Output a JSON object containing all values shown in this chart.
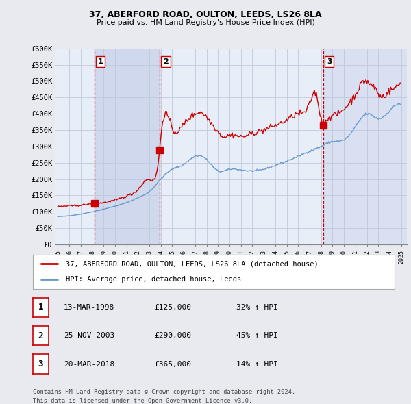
{
  "title1": "37, ABERFORD ROAD, OULTON, LEEDS, LS26 8LA",
  "title2": "Price paid vs. HM Land Registry's House Price Index (HPI)",
  "ylim": [
    0,
    600000
  ],
  "yticks": [
    0,
    50000,
    100000,
    150000,
    200000,
    250000,
    300000,
    350000,
    400000,
    450000,
    500000,
    550000,
    600000
  ],
  "ytick_labels": [
    "£0",
    "£50K",
    "£100K",
    "£150K",
    "£200K",
    "£250K",
    "£300K",
    "£350K",
    "£400K",
    "£450K",
    "£500K",
    "£550K",
    "£600K"
  ],
  "bg_color": "#e8eaf0",
  "plot_bg_color": "#e8eef8",
  "shade_color": "#d0d8ee",
  "grid_color": "#c0c8dc",
  "hpi_color": "#6699cc",
  "price_color": "#cc0000",
  "vline_color": "#cc0000",
  "sale_years": [
    1998.2,
    2003.9,
    2018.2
  ],
  "sale_prices": [
    125000,
    290000,
    365000
  ],
  "sale_labels": [
    "1",
    "2",
    "3"
  ],
  "legend_label_red": "37, ABERFORD ROAD, OULTON, LEEDS, LS26 8LA (detached house)",
  "legend_label_blue": "HPI: Average price, detached house, Leeds",
  "table_rows": [
    {
      "num": "1",
      "date": "13-MAR-1998",
      "price": "£125,000",
      "pct": "32% ↑ HPI"
    },
    {
      "num": "2",
      "date": "25-NOV-2003",
      "price": "£290,000",
      "pct": "45% ↑ HPI"
    },
    {
      "num": "3",
      "date": "20-MAR-2018",
      "price": "£365,000",
      "pct": "14% ↑ HPI"
    }
  ],
  "footnote1": "Contains HM Land Registry data © Crown copyright and database right 2024.",
  "footnote2": "This data is licensed under the Open Government Licence v3.0."
}
